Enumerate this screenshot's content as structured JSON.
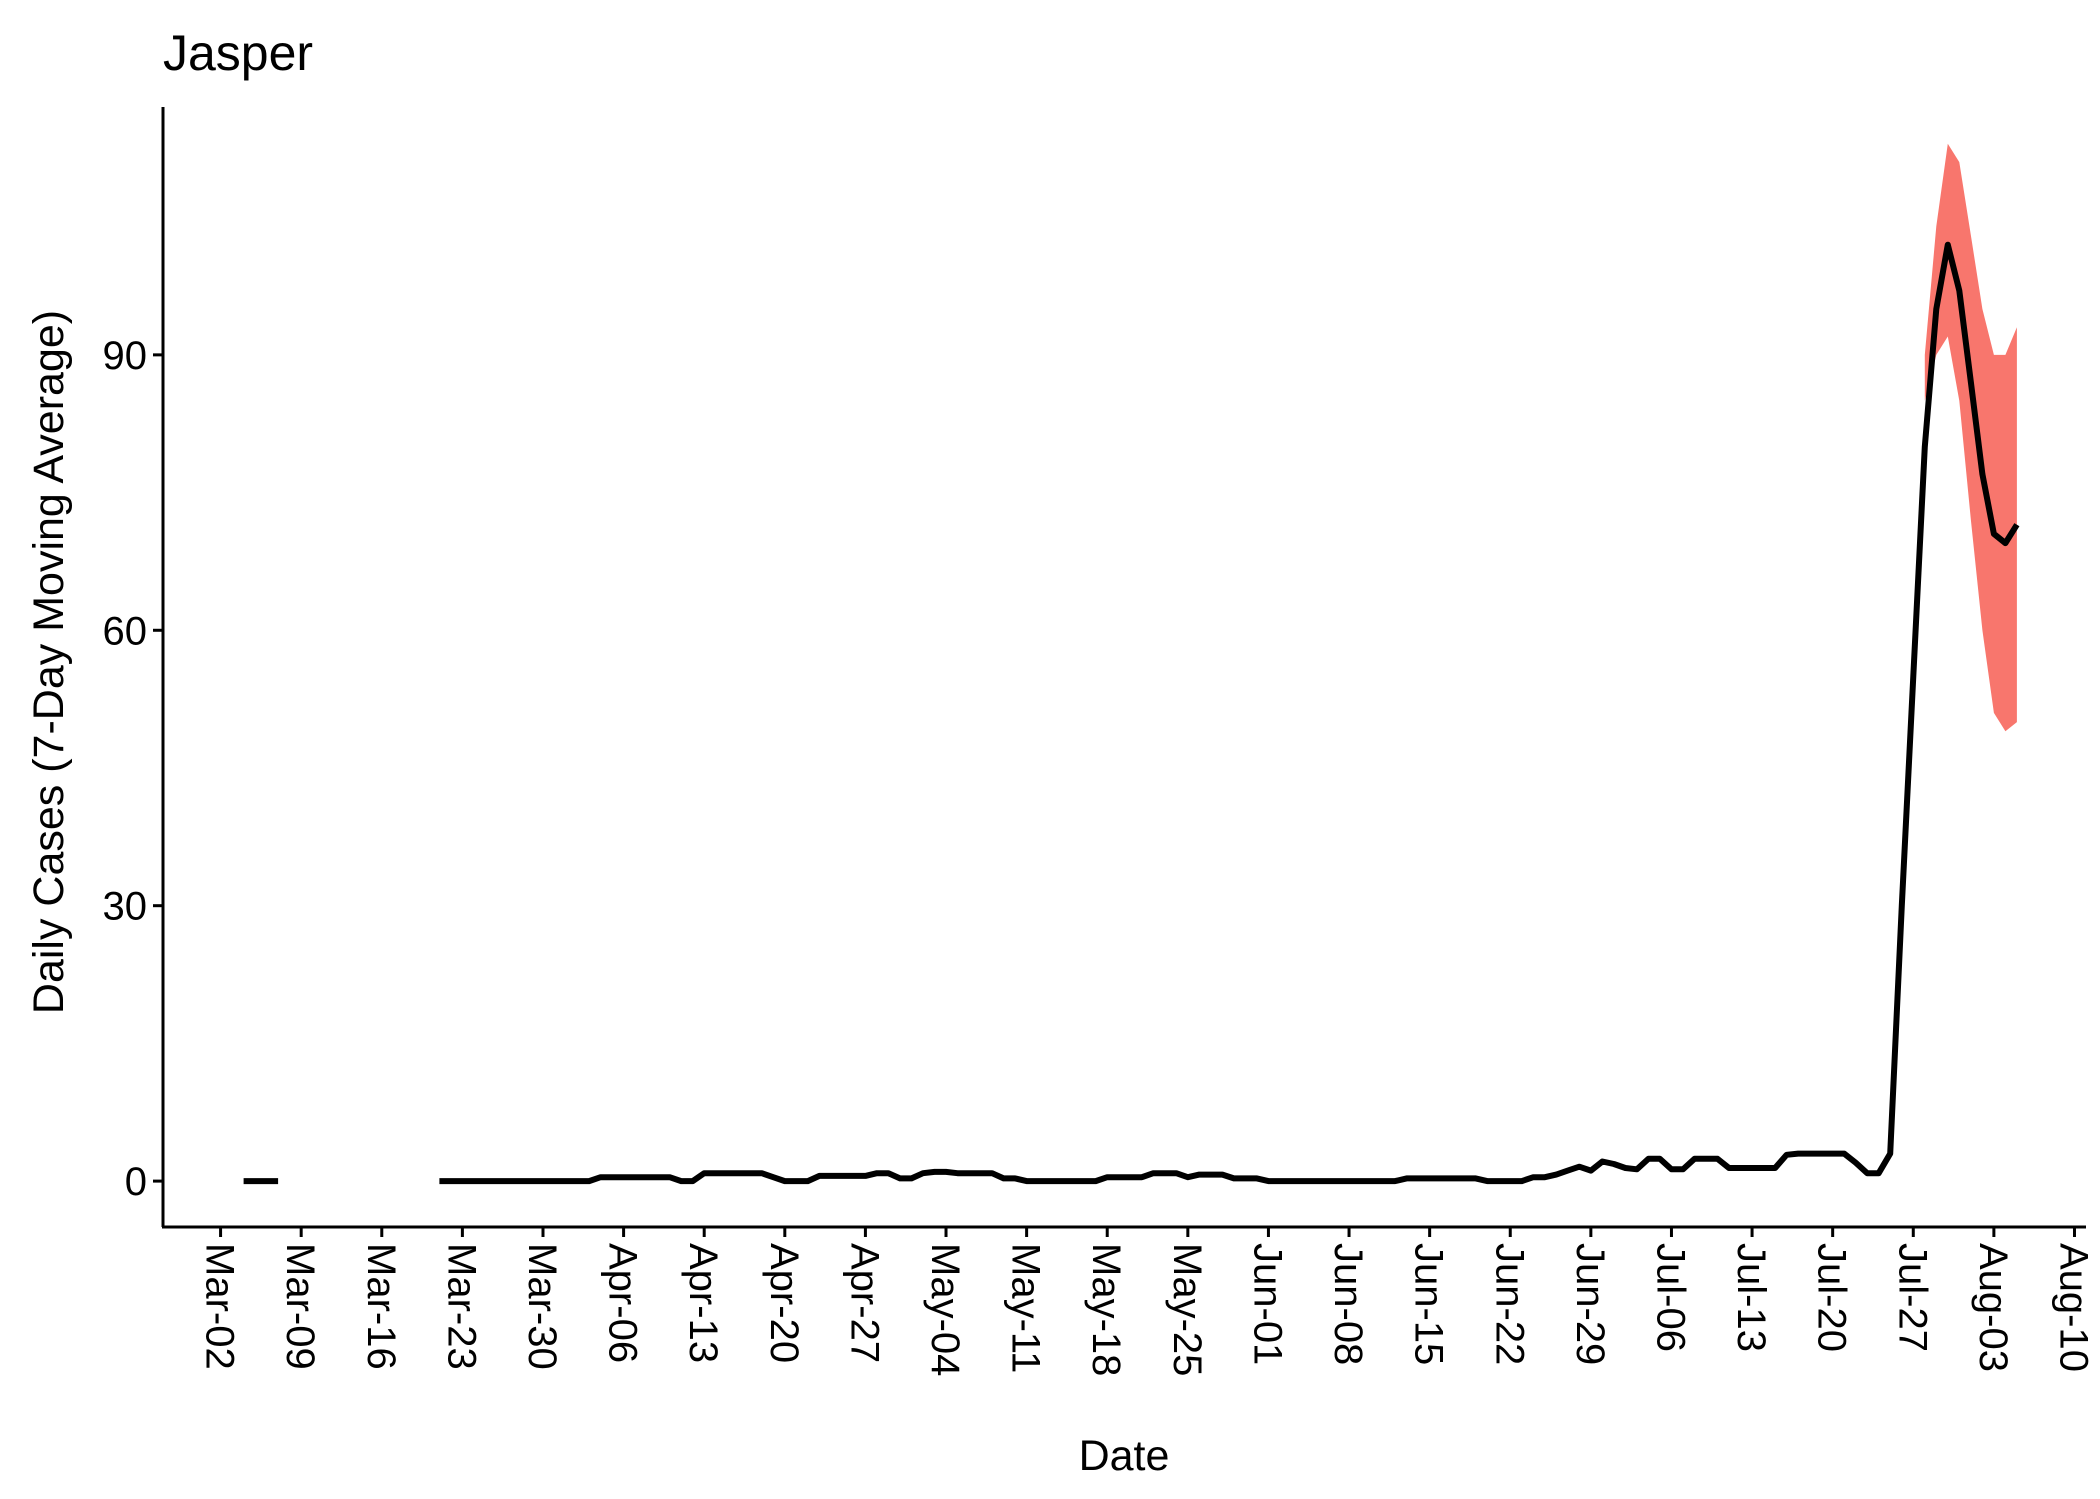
{
  "chart_data": {
    "type": "line",
    "title": "Jasper",
    "xlabel": "Date",
    "ylabel": "Daily Cases (7-Day Moving Average)",
    "x_ticks": [
      "Mar-02",
      "Mar-09",
      "Mar-16",
      "Mar-23",
      "Mar-30",
      "Apr-06",
      "Apr-13",
      "Apr-20",
      "Apr-27",
      "May-04",
      "May-11",
      "May-18",
      "May-25",
      "Jun-01",
      "Jun-08",
      "Jun-15",
      "Jun-22",
      "Jun-29",
      "Jul-06",
      "Jul-13",
      "Jul-20",
      "Jul-27",
      "Aug-03",
      "Aug-10"
    ],
    "y_ticks": [
      0,
      30,
      60,
      90
    ],
    "ylim": [
      -5,
      117
    ],
    "xlim": [
      "2020-02-26",
      "2020-08-11"
    ],
    "grid": false,
    "colors": {
      "line": "#000000",
      "band": "#f8766d"
    },
    "series": [
      {
        "name": "",
        "segments": [
          [
            [
              "2020-03-04",
              0
            ],
            [
              "2020-03-05",
              0
            ],
            [
              "2020-03-06",
              0
            ],
            [
              "2020-03-07",
              0
            ]
          ],
          [
            [
              "2020-03-21",
              0
            ],
            [
              "2020-03-22",
              0
            ],
            [
              "2020-03-23",
              0
            ],
            [
              "2020-03-24",
              0
            ],
            [
              "2020-03-25",
              0
            ],
            [
              "2020-03-26",
              0
            ],
            [
              "2020-03-27",
              0
            ],
            [
              "2020-03-28",
              0
            ],
            [
              "2020-03-29",
              0
            ],
            [
              "2020-03-30",
              0
            ],
            [
              "2020-03-31",
              0
            ],
            [
              "2020-04-01",
              0
            ],
            [
              "2020-04-02",
              0
            ],
            [
              "2020-04-03",
              0
            ],
            [
              "2020-04-04",
              0.43
            ],
            [
              "2020-04-05",
              0.43
            ],
            [
              "2020-04-06",
              0.43
            ],
            [
              "2020-04-07",
              0.43
            ],
            [
              "2020-04-08",
              0.43
            ],
            [
              "2020-04-09",
              0.43
            ],
            [
              "2020-04-10",
              0.43
            ],
            [
              "2020-04-11",
              0
            ],
            [
              "2020-04-12",
              0
            ],
            [
              "2020-04-13",
              0.86
            ],
            [
              "2020-04-14",
              0.86
            ],
            [
              "2020-04-15",
              0.86
            ],
            [
              "2020-04-16",
              0.86
            ],
            [
              "2020-04-17",
              0.86
            ],
            [
              "2020-04-18",
              0.86
            ],
            [
              "2020-04-19",
              0.43
            ],
            [
              "2020-04-20",
              0
            ],
            [
              "2020-04-21",
              0
            ],
            [
              "2020-04-22",
              0
            ],
            [
              "2020-04-23",
              0.57
            ],
            [
              "2020-04-24",
              0.57
            ],
            [
              "2020-04-25",
              0.57
            ],
            [
              "2020-04-26",
              0.57
            ],
            [
              "2020-04-27",
              0.57
            ],
            [
              "2020-04-28",
              0.86
            ],
            [
              "2020-04-29",
              0.86
            ],
            [
              "2020-04-30",
              0.29
            ],
            [
              "2020-05-01",
              0.29
            ],
            [
              "2020-05-02",
              0.86
            ],
            [
              "2020-05-03",
              1.0
            ],
            [
              "2020-05-04",
              1.0
            ],
            [
              "2020-05-05",
              0.86
            ],
            [
              "2020-05-06",
              0.86
            ],
            [
              "2020-05-07",
              0.86
            ],
            [
              "2020-05-08",
              0.86
            ],
            [
              "2020-05-09",
              0.29
            ],
            [
              "2020-05-10",
              0.29
            ],
            [
              "2020-05-11",
              0
            ],
            [
              "2020-05-12",
              0
            ],
            [
              "2020-05-13",
              0
            ],
            [
              "2020-05-14",
              0
            ],
            [
              "2020-05-15",
              0
            ],
            [
              "2020-05-16",
              0
            ],
            [
              "2020-05-17",
              0
            ],
            [
              "2020-05-18",
              0.43
            ],
            [
              "2020-05-19",
              0.43
            ],
            [
              "2020-05-20",
              0.43
            ],
            [
              "2020-05-21",
              0.43
            ],
            [
              "2020-05-22",
              0.86
            ],
            [
              "2020-05-23",
              0.86
            ],
            [
              "2020-05-24",
              0.86
            ],
            [
              "2020-05-25",
              0.43
            ],
            [
              "2020-05-26",
              0.71
            ],
            [
              "2020-05-27",
              0.71
            ],
            [
              "2020-05-28",
              0.71
            ],
            [
              "2020-05-29",
              0.29
            ],
            [
              "2020-05-30",
              0.29
            ],
            [
              "2020-05-31",
              0.29
            ],
            [
              "2020-06-01",
              0
            ],
            [
              "2020-06-02",
              0
            ],
            [
              "2020-06-03",
              0
            ],
            [
              "2020-06-04",
              0
            ],
            [
              "2020-06-05",
              0
            ],
            [
              "2020-06-06",
              0
            ],
            [
              "2020-06-07",
              0
            ],
            [
              "2020-06-08",
              0
            ],
            [
              "2020-06-09",
              0
            ],
            [
              "2020-06-10",
              0
            ],
            [
              "2020-06-11",
              0
            ],
            [
              "2020-06-12",
              0
            ],
            [
              "2020-06-13",
              0.29
            ],
            [
              "2020-06-14",
              0.29
            ],
            [
              "2020-06-15",
              0.29
            ],
            [
              "2020-06-16",
              0.29
            ],
            [
              "2020-06-17",
              0.29
            ],
            [
              "2020-06-18",
              0.29
            ],
            [
              "2020-06-19",
              0.29
            ],
            [
              "2020-06-20",
              0
            ],
            [
              "2020-06-21",
              0
            ],
            [
              "2020-06-22",
              0
            ],
            [
              "2020-06-23",
              0
            ],
            [
              "2020-06-24",
              0.43
            ],
            [
              "2020-06-25",
              0.43
            ],
            [
              "2020-06-26",
              0.71
            ],
            [
              "2020-06-27",
              1.14
            ],
            [
              "2020-06-28",
              1.57
            ],
            [
              "2020-06-29",
              1.14
            ],
            [
              "2020-06-30",
              2.14
            ],
            [
              "2020-07-01",
              1.86
            ],
            [
              "2020-07-02",
              1.43
            ],
            [
              "2020-07-03",
              1.29
            ],
            [
              "2020-07-04",
              2.43
            ],
            [
              "2020-07-05",
              2.43
            ],
            [
              "2020-07-06",
              1.29
            ],
            [
              "2020-07-07",
              1.29
            ],
            [
              "2020-07-08",
              2.43
            ],
            [
              "2020-07-09",
              2.43
            ],
            [
              "2020-07-10",
              2.43
            ],
            [
              "2020-07-11",
              1.43
            ],
            [
              "2020-07-12",
              1.43
            ],
            [
              "2020-07-13",
              1.43
            ],
            [
              "2020-07-14",
              1.43
            ],
            [
              "2020-07-15",
              1.43
            ],
            [
              "2020-07-16",
              2.86
            ],
            [
              "2020-07-17",
              3.0
            ],
            [
              "2020-07-18",
              3.0
            ],
            [
              "2020-07-19",
              3.0
            ],
            [
              "2020-07-20",
              3.0
            ],
            [
              "2020-07-21",
              3.0
            ],
            [
              "2020-07-22",
              2.0
            ],
            [
              "2020-07-23",
              0.86
            ],
            [
              "2020-07-24",
              0.86
            ],
            [
              "2020-07-25",
              3.0
            ],
            [
              "2020-07-26",
              30.0
            ],
            [
              "2020-07-27",
              55.0
            ],
            [
              "2020-07-28",
              80.0
            ],
            [
              "2020-07-29",
              95.0
            ],
            [
              "2020-07-30",
              102.0
            ],
            [
              "2020-07-31",
              97.0
            ],
            [
              "2020-08-01",
              87.0
            ],
            [
              "2020-08-02",
              77.0
            ],
            [
              "2020-08-03",
              70.5
            ],
            [
              "2020-08-04",
              69.5
            ],
            [
              "2020-08-05",
              71.5
            ]
          ]
        ],
        "band": {
          "x": [
            "2020-07-28",
            "2020-07-29",
            "2020-07-30",
            "2020-07-31",
            "2020-08-01",
            "2020-08-02",
            "2020-08-03",
            "2020-08-04",
            "2020-08-05"
          ],
          "lower": [
            85,
            90,
            92,
            85,
            72,
            60,
            51,
            49,
            50
          ],
          "upper": [
            90,
            104,
            113,
            111,
            103,
            95,
            90,
            90,
            93
          ]
        }
      }
    ]
  }
}
